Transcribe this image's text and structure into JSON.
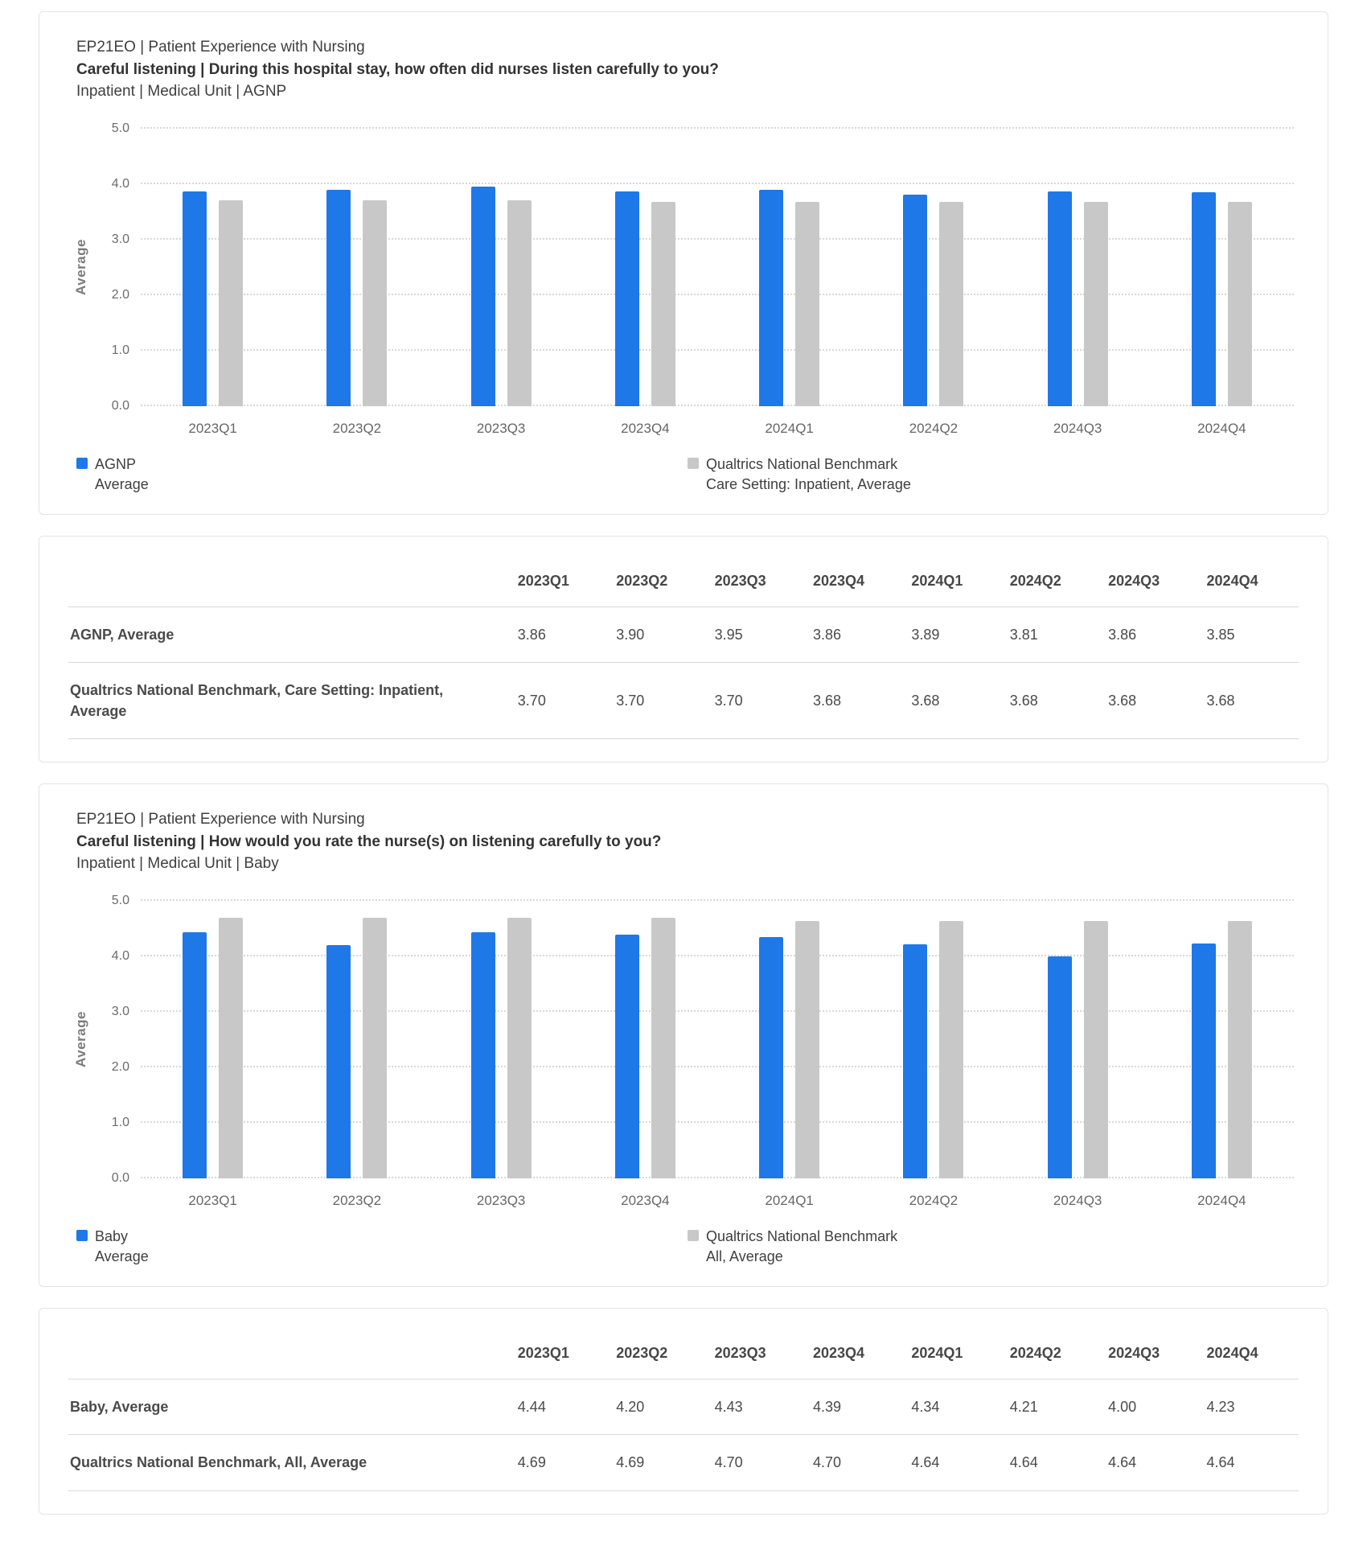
{
  "colors": {
    "series_blue": "#1e78e8",
    "series_gray": "#c8c8c8",
    "gridline": "#d8d8d8"
  },
  "chart_data": [
    {
      "type": "bar",
      "title": "Careful listening | During this hospital stay, how often did nurses listen carefully to you?",
      "categories": [
        "2023Q1",
        "2023Q2",
        "2023Q3",
        "2023Q4",
        "2024Q1",
        "2024Q2",
        "2024Q3",
        "2024Q4"
      ],
      "series": [
        {
          "name": "AGNP",
          "legend_sublabel": "Average",
          "color": "#1e78e8",
          "values": [
            3.86,
            3.9,
            3.95,
            3.86,
            3.89,
            3.81,
            3.86,
            3.85
          ]
        },
        {
          "name": "Qualtrics National Benchmark",
          "legend_sublabel": "Care Setting: Inpatient, Average",
          "color": "#c8c8c8",
          "values": [
            3.7,
            3.7,
            3.7,
            3.68,
            3.68,
            3.68,
            3.68,
            3.68
          ]
        }
      ],
      "xlabel": "",
      "ylabel": "Average",
      "ylim": [
        0,
        5
      ],
      "yticks": [
        0,
        1,
        2,
        3,
        4,
        5
      ],
      "grid": "horizontal-dotted",
      "legend_position": "bottom"
    },
    {
      "type": "bar",
      "title": "Careful listening | How would you rate the nurse(s) on listening carefully to you?",
      "categories": [
        "2023Q1",
        "2023Q2",
        "2023Q3",
        "2023Q4",
        "2024Q1",
        "2024Q2",
        "2024Q3",
        "2024Q4"
      ],
      "series": [
        {
          "name": "Baby",
          "legend_sublabel": "Average",
          "color": "#1e78e8",
          "values": [
            4.44,
            4.2,
            4.43,
            4.39,
            4.34,
            4.21,
            4.0,
            4.23
          ]
        },
        {
          "name": "Qualtrics National Benchmark",
          "legend_sublabel": "All, Average",
          "color": "#c8c8c8",
          "values": [
            4.69,
            4.69,
            4.7,
            4.7,
            4.64,
            4.64,
            4.64,
            4.64
          ]
        }
      ],
      "xlabel": "",
      "ylabel": "Average",
      "ylim": [
        0,
        5
      ],
      "yticks": [
        0,
        1,
        2,
        3,
        4,
        5
      ],
      "grid": "horizontal-dotted",
      "legend_position": "bottom"
    }
  ],
  "panels": [
    {
      "header": {
        "line1": "EP21EO | Patient Experience with Nursing",
        "line2": "Careful listening | During this hospital stay, how often did nurses listen carefully to you?",
        "line3": "Inpatient | Medical Unit | AGNP"
      },
      "legend": [
        {
          "label": "AGNP",
          "sublabel": "Average",
          "color": "#1e78e8"
        },
        {
          "label": "Qualtrics National Benchmark",
          "sublabel": "Care Setting: Inpatient, Average",
          "color": "#c8c8c8"
        }
      ],
      "table": {
        "columns": [
          "2023Q1",
          "2023Q2",
          "2023Q3",
          "2023Q4",
          "2024Q1",
          "2024Q2",
          "2024Q3",
          "2024Q4"
        ],
        "rows": [
          {
            "label": "AGNP, Average",
            "values": [
              "3.86",
              "3.90",
              "3.95",
              "3.86",
              "3.89",
              "3.81",
              "3.86",
              "3.85"
            ]
          },
          {
            "label": "Qualtrics National Benchmark, Care Setting: Inpatient, Average",
            "values": [
              "3.70",
              "3.70",
              "3.70",
              "3.68",
              "3.68",
              "3.68",
              "3.68",
              "3.68"
            ]
          }
        ]
      }
    },
    {
      "header": {
        "line1": "EP21EO | Patient Experience with Nursing",
        "line2": "Careful listening | How would you rate the nurse(s) on listening carefully to you?",
        "line3": "Inpatient | Medical Unit | Baby"
      },
      "legend": [
        {
          "label": "Baby",
          "sublabel": "Average",
          "color": "#1e78e8"
        },
        {
          "label": "Qualtrics National Benchmark",
          "sublabel": "All, Average",
          "color": "#c8c8c8"
        }
      ],
      "table": {
        "columns": [
          "2023Q1",
          "2023Q2",
          "2023Q3",
          "2023Q4",
          "2024Q1",
          "2024Q2",
          "2024Q3",
          "2024Q4"
        ],
        "rows": [
          {
            "label": "Baby, Average",
            "values": [
              "4.44",
              "4.20",
              "4.43",
              "4.39",
              "4.34",
              "4.21",
              "4.00",
              "4.23"
            ]
          },
          {
            "label": "Qualtrics National Benchmark, All, Average",
            "values": [
              "4.69",
              "4.69",
              "4.70",
              "4.70",
              "4.64",
              "4.64",
              "4.64",
              "4.64"
            ]
          }
        ]
      }
    }
  ]
}
